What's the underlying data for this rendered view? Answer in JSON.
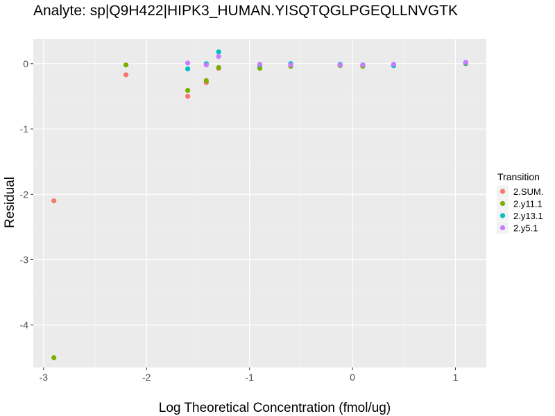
{
  "chart_data": {
    "type": "scatter",
    "title": "Analyte: sp|Q9H422|HIPK3_HUMAN.YISQTQGLPGEQLLNVGTK",
    "xlabel": "Log Theoretical Concentration (fmol/ug)",
    "ylabel": "Residual",
    "xlim": [
      -3.1,
      1.3
    ],
    "ylim": [
      -4.65,
      0.38
    ],
    "x_ticks": [
      -3,
      -2,
      -1,
      0,
      1
    ],
    "x_tick_labels": [
      "-3",
      "-2",
      "-1",
      "0",
      "1"
    ],
    "y_ticks": [
      0,
      -1,
      -2,
      -3,
      -4
    ],
    "y_tick_labels": [
      "0",
      "-1",
      "-2",
      "-3",
      "-4"
    ],
    "grid": true,
    "legend_title": "Transition",
    "legend_position": "right",
    "series": [
      {
        "name": "2.SUM.",
        "color": "#F8766D",
        "points": [
          {
            "x": -2.9,
            "y": -2.1
          },
          {
            "x": -2.2,
            "y": -0.17
          },
          {
            "x": -1.6,
            "y": -0.5
          },
          {
            "x": -1.42,
            "y": -0.29
          },
          {
            "x": -1.3,
            "y": -0.07
          },
          {
            "x": -0.9,
            "y": -0.05
          },
          {
            "x": -0.6,
            "y": -0.02
          },
          {
            "x": -0.12,
            "y": -0.02
          },
          {
            "x": 0.1,
            "y": -0.03
          },
          {
            "x": 0.4,
            "y": -0.02
          },
          {
            "x": 1.1,
            "y": 0.01
          }
        ]
      },
      {
        "name": "2.y11.1",
        "color": "#7CAE00",
        "points": [
          {
            "x": -2.9,
            "y": -4.5
          },
          {
            "x": -2.2,
            "y": -0.02
          },
          {
            "x": -1.6,
            "y": -0.41
          },
          {
            "x": -1.42,
            "y": -0.26
          },
          {
            "x": -1.3,
            "y": -0.06
          },
          {
            "x": -0.9,
            "y": -0.07
          },
          {
            "x": -0.6,
            "y": -0.04
          },
          {
            "x": -0.12,
            "y": -0.03
          },
          {
            "x": 0.1,
            "y": -0.04
          },
          {
            "x": 0.4,
            "y": -0.03
          },
          {
            "x": 1.1,
            "y": 0.0
          }
        ]
      },
      {
        "name": "2.y13.1",
        "color": "#00BFC4",
        "points": [
          {
            "x": -1.6,
            "y": -0.08
          },
          {
            "x": -1.42,
            "y": 0.0
          },
          {
            "x": -1.3,
            "y": 0.18
          },
          {
            "x": -0.9,
            "y": -0.02
          },
          {
            "x": -0.6,
            "y": 0.0
          },
          {
            "x": -0.12,
            "y": -0.01
          },
          {
            "x": 0.1,
            "y": -0.02
          },
          {
            "x": 0.4,
            "y": -0.03
          },
          {
            "x": 1.1,
            "y": 0.01
          }
        ]
      },
      {
        "name": "2.y5.1",
        "color": "#C77CFF",
        "points": [
          {
            "x": -1.6,
            "y": 0.01
          },
          {
            "x": -1.42,
            "y": -0.02
          },
          {
            "x": -1.3,
            "y": 0.11
          },
          {
            "x": -0.9,
            "y": -0.01
          },
          {
            "x": -0.6,
            "y": -0.02
          },
          {
            "x": -0.12,
            "y": -0.02
          },
          {
            "x": 0.1,
            "y": -0.02
          },
          {
            "x": 0.4,
            "y": -0.01
          },
          {
            "x": 1.1,
            "y": 0.02
          }
        ]
      }
    ]
  }
}
